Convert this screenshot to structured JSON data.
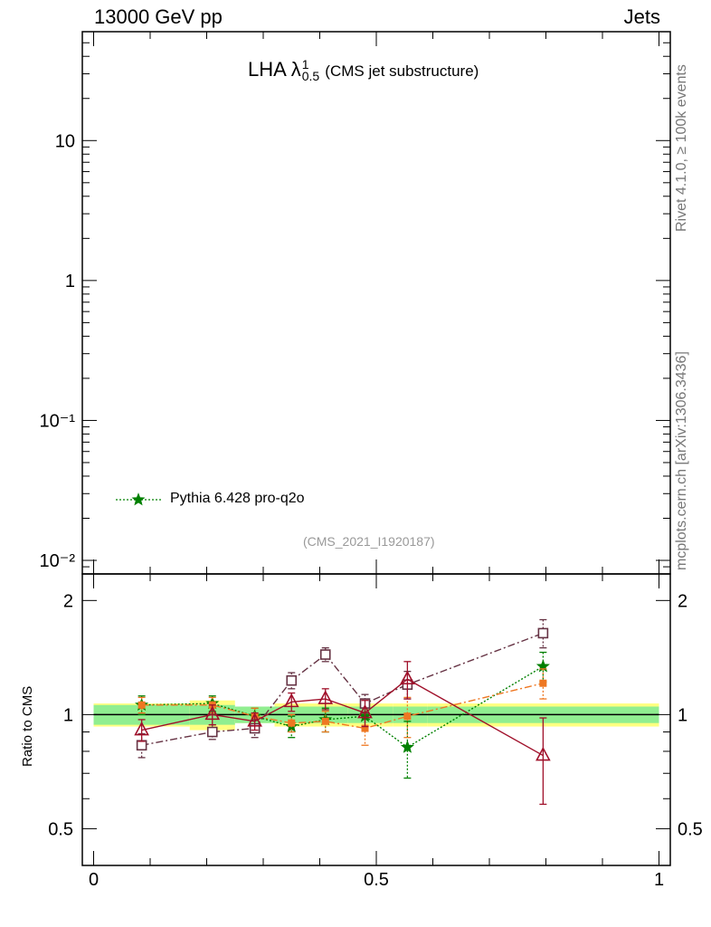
{
  "header": {
    "left": "13000 GeV pp",
    "right": "Jets"
  },
  "side_text": {
    "rivet": "Rivet 4.1.0, ≥ 100k events",
    "mcplots": "mcplots.cern.ch [arXiv:1306.3436]"
  },
  "main_plot": {
    "title_main": "LHA λ",
    "title_sup": "1",
    "title_sub": "0.5",
    "title_suffix": "(CMS jet substructure)",
    "analysis_id": "(CMS_2021_I1920187)",
    "yaxis_scale": "log",
    "ylim": [
      0.008,
      60
    ],
    "ytick_labels": [
      {
        "value": 10,
        "label": "10"
      },
      {
        "value": 1,
        "label": "1"
      },
      {
        "value": 0.1,
        "label": "10⁻¹"
      },
      {
        "value": 0.01,
        "label": "10⁻²"
      }
    ],
    "legend": [
      {
        "label": "Pythia 6.428 pro-q2o",
        "color": "#008000",
        "marker": "star",
        "line": "dotted"
      }
    ]
  },
  "chart_data": {
    "type": "line",
    "title": "LHA λ 1 0.5 (CMS jet substructure)",
    "xlabel": "",
    "ylabel": "Ratio to CMS",
    "xlim": [
      -0.02,
      1.02
    ],
    "ylim": [
      0.4,
      2.35
    ],
    "y_scale": "log",
    "xticks": [
      0,
      0.5,
      1
    ],
    "xtick_labels": [
      "0",
      "0.5",
      "1"
    ],
    "yticks": [
      0.5,
      1,
      2
    ],
    "ytick_labels": [
      "0.5",
      "1",
      "2"
    ],
    "reference_line": 1,
    "reference_bands": {
      "edges": [
        0,
        0.17,
        0.25,
        0.32,
        0.38,
        0.45,
        0.53,
        0.59,
        1.0
      ],
      "inner": [
        0.06,
        0.06,
        0.05,
        0.05,
        0.05,
        0.05,
        0.05,
        0.05
      ],
      "outer": [
        0.07,
        0.09,
        0.05,
        0.07,
        0.07,
        0.07,
        0.07,
        0.07
      ]
    },
    "series": [
      {
        "name": "Pythia 6.428 pro-q2o",
        "color": "#008000",
        "marker": "star",
        "line": "dotted",
        "x": [
          0.085,
          0.21,
          0.285,
          0.35,
          0.41,
          0.48,
          0.555,
          0.795
        ],
        "y": [
          1.06,
          1.07,
          0.99,
          0.93,
          0.97,
          0.99,
          0.82,
          1.34
        ],
        "err": [
          0.06,
          0.05,
          0.05,
          0.06,
          0.07,
          0.08,
          0.14,
          0.12
        ]
      },
      {
        "name": "orange",
        "color": "#ee7722",
        "marker": "square-filled",
        "line": "dashdot",
        "x": [
          0.085,
          0.21,
          0.285,
          0.35,
          0.41,
          0.48,
          0.555,
          0.795
        ],
        "y": [
          1.06,
          1.06,
          0.99,
          0.95,
          0.96,
          0.92,
          0.99,
          1.21
        ],
        "err": [
          0.05,
          0.05,
          0.05,
          0.05,
          0.06,
          0.09,
          0.12,
          0.11
        ]
      },
      {
        "name": "brown",
        "color": "#663344",
        "marker": "square-open",
        "line": "dashdot",
        "x": [
          0.085,
          0.21,
          0.285,
          0.35,
          0.41,
          0.48,
          0.555,
          0.795
        ],
        "y": [
          0.83,
          0.9,
          0.92,
          1.23,
          1.44,
          1.07,
          1.2,
          1.64
        ],
        "err": [
          0.06,
          0.04,
          0.05,
          0.06,
          0.06,
          0.06,
          0.1,
          0.14
        ]
      },
      {
        "name": "darkred",
        "color": "#a0102a",
        "marker": "triangle-open",
        "line": "solid",
        "x": [
          0.085,
          0.21,
          0.285,
          0.35,
          0.41,
          0.48,
          0.555,
          0.795
        ],
        "y": [
          0.91,
          1.0,
          0.96,
          1.08,
          1.1,
          1.01,
          1.24,
          0.78
        ],
        "err": [
          0.06,
          0.06,
          0.05,
          0.06,
          0.07,
          0.08,
          0.14,
          0.2
        ]
      }
    ]
  }
}
